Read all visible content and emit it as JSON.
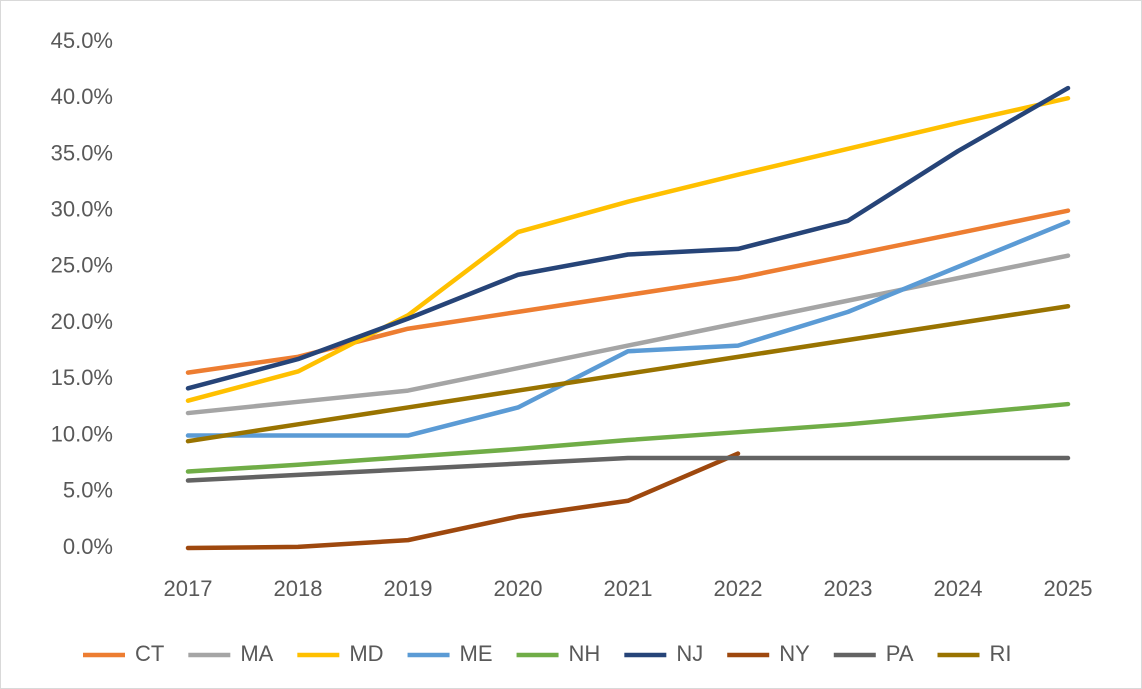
{
  "chart_data": {
    "type": "line",
    "categories": [
      "2017",
      "2018",
      "2019",
      "2020",
      "2021",
      "2022",
      "2023",
      "2024",
      "2025"
    ],
    "series": [
      {
        "name": "CT",
        "color": "#ED7D31",
        "values": [
          15.6,
          17,
          19.5,
          21,
          22.5,
          24,
          26,
          28,
          30
        ]
      },
      {
        "name": "MA",
        "color": "#A5A5A5",
        "values": [
          12,
          13,
          14,
          16,
          18,
          20,
          22,
          24,
          26
        ]
      },
      {
        "name": "MD",
        "color": "#FFC000",
        "values": [
          13.1,
          15.7,
          20.7,
          28.1,
          30.8,
          33.2,
          35.5,
          37.8,
          40
        ]
      },
      {
        "name": "ME",
        "color": "#5B9BD5",
        "values": [
          10,
          10,
          10,
          12.5,
          17.5,
          18,
          21,
          25,
          29
        ]
      },
      {
        "name": "NH",
        "color": "#70AD47",
        "values": [
          6.8,
          7.4,
          8.1,
          8.8,
          9.6,
          10.3,
          11,
          11.9,
          12.8
        ]
      },
      {
        "name": "NJ",
        "color": "#264478",
        "values": [
          14.2,
          16.8,
          20.4,
          24.3,
          26.1,
          26.6,
          29.1,
          35.3,
          40.9
        ]
      },
      {
        "name": "NY",
        "color": "#9E480E",
        "values": [
          0,
          0.1,
          0.7,
          2.8,
          4.2,
          8.4,
          null,
          null,
          null
        ]
      },
      {
        "name": "PA",
        "color": "#636363",
        "values": [
          6,
          6.5,
          7,
          7.5,
          8,
          8,
          8,
          8,
          8
        ]
      },
      {
        "name": "RI",
        "color": "#997300",
        "values": [
          9.5,
          11,
          12.5,
          14,
          15.5,
          17,
          18.5,
          20,
          21.5
        ]
      }
    ],
    "ylim": [
      0,
      45
    ],
    "yticks": [
      {
        "value": 0,
        "label": "0.0%"
      },
      {
        "value": 5,
        "label": "5.0%"
      },
      {
        "value": 10,
        "label": "10.0%"
      },
      {
        "value": 15,
        "label": "15.0%"
      },
      {
        "value": 20,
        "label": "20.0%"
      },
      {
        "value": 25,
        "label": "25.0%"
      },
      {
        "value": 30,
        "label": "30.0%"
      },
      {
        "value": 35,
        "label": "35.0%"
      },
      {
        "value": 40,
        "label": "40.0%"
      },
      {
        "value": 45,
        "label": "45.0%"
      }
    ],
    "grid": false,
    "legend": "bottom"
  }
}
